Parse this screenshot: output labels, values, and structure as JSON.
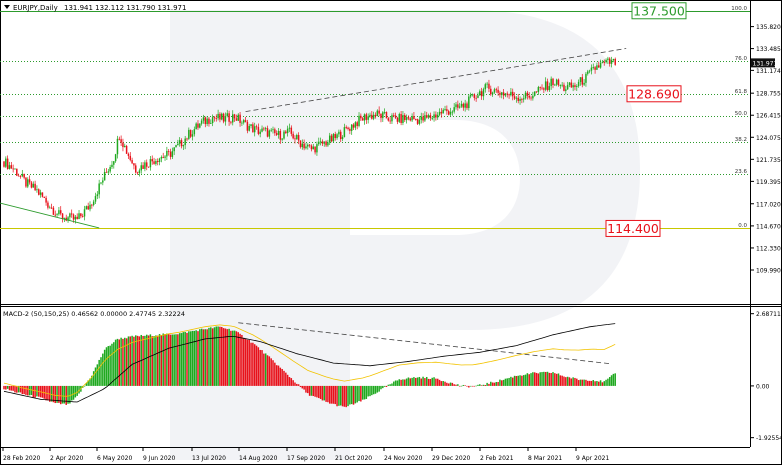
{
  "header": {
    "symbol_label": "EURJPY,Daily",
    "ohlc": "131.941 132.112 131.790 131.971"
  },
  "colors": {
    "bull": "#1fa91f",
    "bear": "#e8111a",
    "fib": "#2d9b2d",
    "zero_fib": "#c8c800",
    "target_box": "#e8111a",
    "target_green": "#2d9b2d",
    "macd_signal": "#f2c300"
  },
  "main_chart": {
    "y_ticks": [
      "135.820",
      "133.485",
      "131.174",
      "128.755",
      "126.415",
      "124.075",
      "121.735",
      "119.395",
      "117.020",
      "114.670",
      "112.330",
      "109.990"
    ],
    "price_tag": "131.971",
    "fib_levels": [
      {
        "label": "100.0",
        "value": 137.5
      },
      {
        "label": "76.0",
        "value": 132.2
      },
      {
        "label": "61.8",
        "value": 128.69
      },
      {
        "label": "50.0",
        "value": 126.3
      },
      {
        "label": "38.2",
        "value": 123.6
      },
      {
        "label": "23.6",
        "value": 120.2
      },
      {
        "label": "0.0",
        "value": 114.4
      }
    ],
    "targets": [
      "137.500",
      "128.690",
      "114.400"
    ]
  },
  "macd": {
    "label": "MACD-2 (50,150,25) 0.46562 0.00000 2.47745 2.32224",
    "y_ticks": [
      "2.68711",
      "0.00",
      "-1.92554"
    ]
  },
  "x_ticks": [
    "28 Feb 2020",
    "2 Apr 2020",
    "6 May 2020",
    "9 Jun 2020",
    "13 Jul 2020",
    "14 Aug 2020",
    "17 Sep 2020",
    "21 Oct 2020",
    "24 Nov 2020",
    "29 Dec 2020",
    "2 Feb 2021",
    "8 Mar 2021",
    "9 Apr 2021"
  ],
  "chart_data": {
    "type": "candlestick",
    "title": "EURJPY,Daily",
    "ylim": [
      109.99,
      137.9
    ],
    "price_anchors": [
      [
        0,
        121.5
      ],
      [
        6,
        120.6
      ],
      [
        12,
        119.2
      ],
      [
        18,
        118.4
      ],
      [
        24,
        117.0
      ],
      [
        30,
        115.8
      ],
      [
        35,
        115.5
      ],
      [
        40,
        115.3
      ],
      [
        47,
        116.9
      ],
      [
        54,
        119.6
      ],
      [
        60,
        121.9
      ],
      [
        63,
        124.4
      ],
      [
        67,
        122.6
      ],
      [
        72,
        120.7
      ],
      [
        78,
        121.3
      ],
      [
        84,
        121.9
      ],
      [
        90,
        122.2
      ],
      [
        96,
        123.3
      ],
      [
        102,
        124.6
      ],
      [
        108,
        125.6
      ],
      [
        114,
        126.2
      ],
      [
        120,
        126.0
      ],
      [
        126,
        126.3
      ],
      [
        132,
        125.4
      ],
      [
        138,
        124.8
      ],
      [
        144,
        124.6
      ],
      [
        150,
        124.3
      ],
      [
        156,
        124.6
      ],
      [
        162,
        123.5
      ],
      [
        168,
        122.8
      ],
      [
        174,
        123.4
      ],
      [
        180,
        123.9
      ],
      [
        186,
        124.7
      ],
      [
        192,
        125.6
      ],
      [
        198,
        126.3
      ],
      [
        204,
        126.5
      ],
      [
        210,
        126.1
      ],
      [
        216,
        126.0
      ],
      [
        222,
        126.1
      ],
      [
        228,
        125.9
      ],
      [
        234,
        126.3
      ],
      [
        240,
        126.8
      ],
      [
        246,
        127.0
      ],
      [
        252,
        127.5
      ],
      [
        258,
        128.6
      ],
      [
        264,
        129.3
      ],
      [
        270,
        128.9
      ],
      [
        276,
        128.6
      ],
      [
        282,
        128.3
      ],
      [
        288,
        128.5
      ],
      [
        294,
        129.2
      ],
      [
        300,
        130.0
      ],
      [
        306,
        129.3
      ],
      [
        312,
        129.5
      ],
      [
        318,
        130.4
      ],
      [
        324,
        131.6
      ],
      [
        330,
        132.0
      ],
      [
        334,
        131.97
      ]
    ],
    "macd_anchors": [
      [
        0,
        -0.1
      ],
      [
        10,
        -0.3
      ],
      [
        20,
        -0.45
      ],
      [
        28,
        -0.65
      ],
      [
        35,
        -0.7
      ],
      [
        40,
        -0.4
      ],
      [
        48,
        0.4
      ],
      [
        55,
        1.35
      ],
      [
        62,
        1.75
      ],
      [
        72,
        1.85
      ],
      [
        84,
        1.9
      ],
      [
        96,
        1.95
      ],
      [
        108,
        2.1
      ],
      [
        118,
        2.2
      ],
      [
        126,
        2.05
      ],
      [
        136,
        1.6
      ],
      [
        146,
        1.0
      ],
      [
        156,
        0.35
      ],
      [
        166,
        -0.3
      ],
      [
        176,
        -0.6
      ],
      [
        186,
        -0.8
      ],
      [
        196,
        -0.55
      ],
      [
        206,
        -0.15
      ],
      [
        216,
        0.25
      ],
      [
        226,
        0.32
      ],
      [
        236,
        0.28
      ],
      [
        242,
        0.15
      ],
      [
        250,
        0.0
      ],
      [
        256,
        -0.03
      ],
      [
        262,
        0.05
      ],
      [
        270,
        0.18
      ],
      [
        280,
        0.38
      ],
      [
        290,
        0.48
      ],
      [
        300,
        0.5
      ],
      [
        306,
        0.36
      ],
      [
        314,
        0.24
      ],
      [
        322,
        0.22
      ],
      [
        328,
        0.15
      ],
      [
        334,
        0.46
      ]
    ],
    "signal_anchors": [
      [
        0,
        -0.2
      ],
      [
        20,
        -0.5
      ],
      [
        40,
        -0.6
      ],
      [
        55,
        -0.1
      ],
      [
        70,
        0.8
      ],
      [
        90,
        1.4
      ],
      [
        110,
        1.75
      ],
      [
        125,
        1.85
      ],
      [
        140,
        1.65
      ],
      [
        160,
        1.2
      ],
      [
        180,
        0.85
      ],
      [
        200,
        0.75
      ],
      [
        220,
        0.9
      ],
      [
        240,
        1.1
      ],
      [
        260,
        1.25
      ],
      [
        280,
        1.5
      ],
      [
        300,
        1.9
      ],
      [
        320,
        2.2
      ],
      [
        334,
        2.32
      ]
    ],
    "series": [
      {
        "name": "MACD",
        "last": 0.46562
      },
      {
        "name": "Signal",
        "last": 2.32224
      }
    ]
  }
}
